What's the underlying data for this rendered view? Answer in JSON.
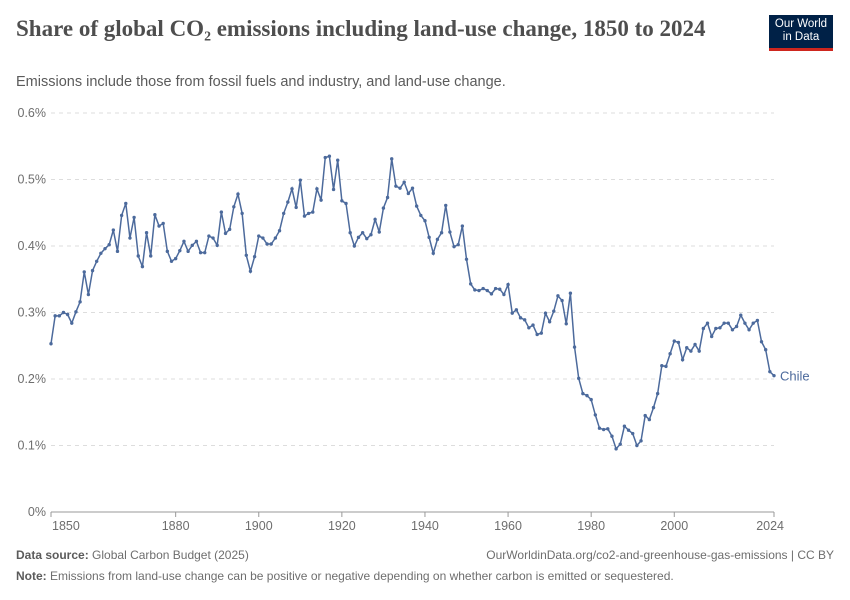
{
  "header": {
    "title": "Share of global CO₂ emissions including land-use change, 1850 to 2024",
    "subtitle": "Emissions include those from fossil fuels and industry, and land-use change.",
    "logo_text": "Our World in Data"
  },
  "footer": {
    "source_label": "Data source:",
    "source_text": "Global Carbon Budget (2025)",
    "url_text": "OurWorldinData.org/co2-and-greenhouse-gas-emissions | CC BY",
    "note_label": "Note:",
    "note_text": "Emissions from land-use change can be positive or negative depending on whether carbon is emitted or sequestered."
  },
  "colors": {
    "line": "#4c6a9c",
    "grid": "#dddddd",
    "logo_bg": "#002147",
    "logo_accent": "#ce261e"
  },
  "chart_data": {
    "type": "line",
    "xlim": [
      1850,
      2024
    ],
    "ylim": [
      0,
      0.6
    ],
    "grid": true,
    "y_ticks": [
      0,
      0.1,
      0.2,
      0.3,
      0.4,
      0.5,
      0.6
    ],
    "y_tick_labels": [
      "0%",
      "0.1%",
      "0.2%",
      "0.3%",
      "0.4%",
      "0.5%",
      "0.6%"
    ],
    "x_ticks": [
      1850,
      1880,
      1900,
      1920,
      1940,
      1960,
      1980,
      2000,
      2024
    ],
    "x_tick_labels": [
      "1850",
      "1880",
      "1900",
      "1920",
      "1940",
      "1960",
      "1980",
      "2000",
      "2024"
    ],
    "series": [
      {
        "name": "Chile",
        "x_start": 1850,
        "values": [
          0.253,
          0.295,
          0.295,
          0.3,
          0.297,
          0.284,
          0.301,
          0.316,
          0.361,
          0.327,
          0.363,
          0.377,
          0.389,
          0.396,
          0.402,
          0.424,
          0.392,
          0.446,
          0.464,
          0.412,
          0.443,
          0.385,
          0.369,
          0.42,
          0.385,
          0.447,
          0.43,
          0.434,
          0.392,
          0.377,
          0.381,
          0.393,
          0.407,
          0.392,
          0.401,
          0.407,
          0.39,
          0.39,
          0.415,
          0.412,
          0.401,
          0.451,
          0.419,
          0.425,
          0.459,
          0.478,
          0.449,
          0.386,
          0.362,
          0.384,
          0.415,
          0.412,
          0.403,
          0.403,
          0.412,
          0.423,
          0.449,
          0.466,
          0.486,
          0.458,
          0.499,
          0.445,
          0.449,
          0.451,
          0.486,
          0.469,
          0.533,
          0.535,
          0.485,
          0.529,
          0.468,
          0.464,
          0.42,
          0.4,
          0.413,
          0.42,
          0.411,
          0.417,
          0.44,
          0.421,
          0.457,
          0.473,
          0.531,
          0.49,
          0.487,
          0.496,
          0.479,
          0.487,
          0.46,
          0.446,
          0.438,
          0.413,
          0.389,
          0.41,
          0.42,
          0.461,
          0.421,
          0.399,
          0.402,
          0.43,
          0.38,
          0.343,
          0.334,
          0.333,
          0.336,
          0.333,
          0.328,
          0.336,
          0.335,
          0.327,
          0.342,
          0.299,
          0.304,
          0.292,
          0.289,
          0.277,
          0.281,
          0.267,
          0.269,
          0.299,
          0.286,
          0.302,
          0.325,
          0.318,
          0.283,
          0.329,
          0.248,
          0.201,
          0.178,
          0.175,
          0.169,
          0.146,
          0.126,
          0.124,
          0.125,
          0.114,
          0.095,
          0.102,
          0.129,
          0.123,
          0.118,
          0.1,
          0.107,
          0.145,
          0.139,
          0.157,
          0.178,
          0.22,
          0.219,
          0.238,
          0.257,
          0.255,
          0.229,
          0.247,
          0.242,
          0.252,
          0.242,
          0.276,
          0.284,
          0.264,
          0.276,
          0.277,
          0.284,
          0.284,
          0.274,
          0.279,
          0.296,
          0.284,
          0.274,
          0.284,
          0.288,
          0.256,
          0.244,
          0.211,
          0.205
        ]
      }
    ]
  }
}
